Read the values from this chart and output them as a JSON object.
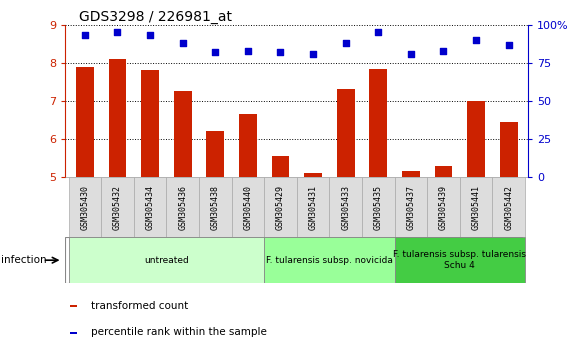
{
  "title": "GDS3298 / 226981_at",
  "samples": [
    "GSM305430",
    "GSM305432",
    "GSM305434",
    "GSM305436",
    "GSM305438",
    "GSM305440",
    "GSM305429",
    "GSM305431",
    "GSM305433",
    "GSM305435",
    "GSM305437",
    "GSM305439",
    "GSM305441",
    "GSM305442"
  ],
  "transformed_count": [
    7.9,
    8.1,
    7.8,
    7.25,
    6.2,
    6.65,
    5.55,
    5.1,
    7.3,
    7.85,
    5.15,
    5.3,
    7.0,
    6.45
  ],
  "percentile_rank": [
    93,
    95,
    93,
    88,
    82,
    83,
    82,
    81,
    88,
    95,
    81,
    83,
    90,
    87
  ],
  "ylim_left": [
    5,
    9
  ],
  "ylim_right": [
    0,
    100
  ],
  "yticks_left": [
    5,
    6,
    7,
    8,
    9
  ],
  "yticks_right": [
    0,
    25,
    50,
    75,
    100
  ],
  "ytick_labels_right": [
    "0",
    "25",
    "50",
    "75",
    "100%"
  ],
  "bar_color": "#cc2200",
  "dot_color": "#0000cc",
  "group_spans": [
    {
      "start": 0,
      "end": 5,
      "label": "untreated",
      "color": "#ccffcc"
    },
    {
      "start": 6,
      "end": 9,
      "label": "F. tularensis subsp. novicida",
      "color": "#99ff99"
    },
    {
      "start": 10,
      "end": 13,
      "label": "F. tularensis subsp. tularensis\nSchu 4",
      "color": "#44cc44"
    }
  ],
  "legend_items": [
    {
      "color": "#cc2200",
      "label": "transformed count"
    },
    {
      "color": "#0000cc",
      "label": "percentile rank within the sample"
    }
  ],
  "tick_color_left": "#cc2200",
  "tick_color_right": "#0000cc"
}
